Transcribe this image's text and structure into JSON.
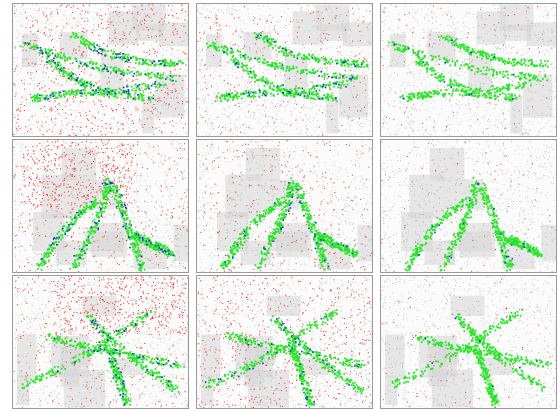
{
  "figure": {
    "layout": {
      "rows": 3,
      "cols": 3
    },
    "colors": {
      "background": "#ffffff",
      "cloud": "#8c8c8c",
      "error": "#ff2020",
      "prediction": "#22e822",
      "ground_truth": "#1e2ee8"
    },
    "panels": [
      {
        "id": "r1c1",
        "error_density": 0.9,
        "blue_density": 0.9
      },
      {
        "id": "r1c2",
        "error_density": 0.35,
        "blue_density": 0.5
      },
      {
        "id": "r1c3",
        "error_density": 0.12,
        "blue_density": 0.1
      },
      {
        "id": "r2c1",
        "error_density": 1.0,
        "blue_density": 0.6
      },
      {
        "id": "r2c2",
        "error_density": 0.4,
        "blue_density": 0.3
      },
      {
        "id": "r2c3",
        "error_density": 0.1,
        "blue_density": 0.15
      },
      {
        "id": "r3c1",
        "error_density": 1.0,
        "blue_density": 0.5
      },
      {
        "id": "r3c2",
        "error_density": 0.7,
        "blue_density": 0.4
      },
      {
        "id": "r3c3",
        "error_density": 0.1,
        "blue_density": 0.05
      }
    ]
  }
}
